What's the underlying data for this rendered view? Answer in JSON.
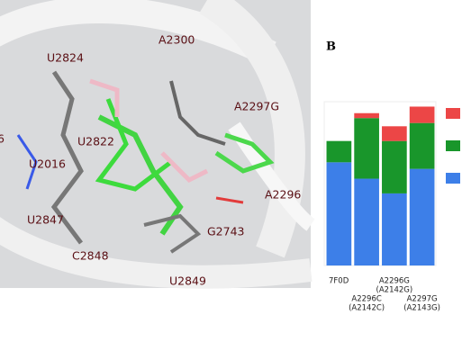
{
  "image_labels": [
    "A2300",
    "U2824",
    "A2297G",
    "U2822",
    "6",
    "U2016",
    "A2296",
    "U2847",
    "G2743",
    "C2848",
    "U2849"
  ],
  "panel_label": "B",
  "chart_data": {
    "type": "stacked-bar",
    "categories": [
      [
        "7F0D"
      ],
      [
        "A2296C",
        "(A2142C)"
      ],
      [
        "A2296G",
        "(A2142G)"
      ],
      [
        "A2297G",
        "(A2143G)"
      ]
    ],
    "series": [
      {
        "color": "#3d7fe8",
        "values": [
          63,
          53,
          44,
          59
        ]
      },
      {
        "color": "#19962b",
        "values": [
          13,
          37,
          32,
          28
        ]
      },
      {
        "color": "#ec4646",
        "values": [
          0,
          3,
          9,
          10
        ]
      }
    ],
    "ylim": [
      0,
      100
    ]
  }
}
